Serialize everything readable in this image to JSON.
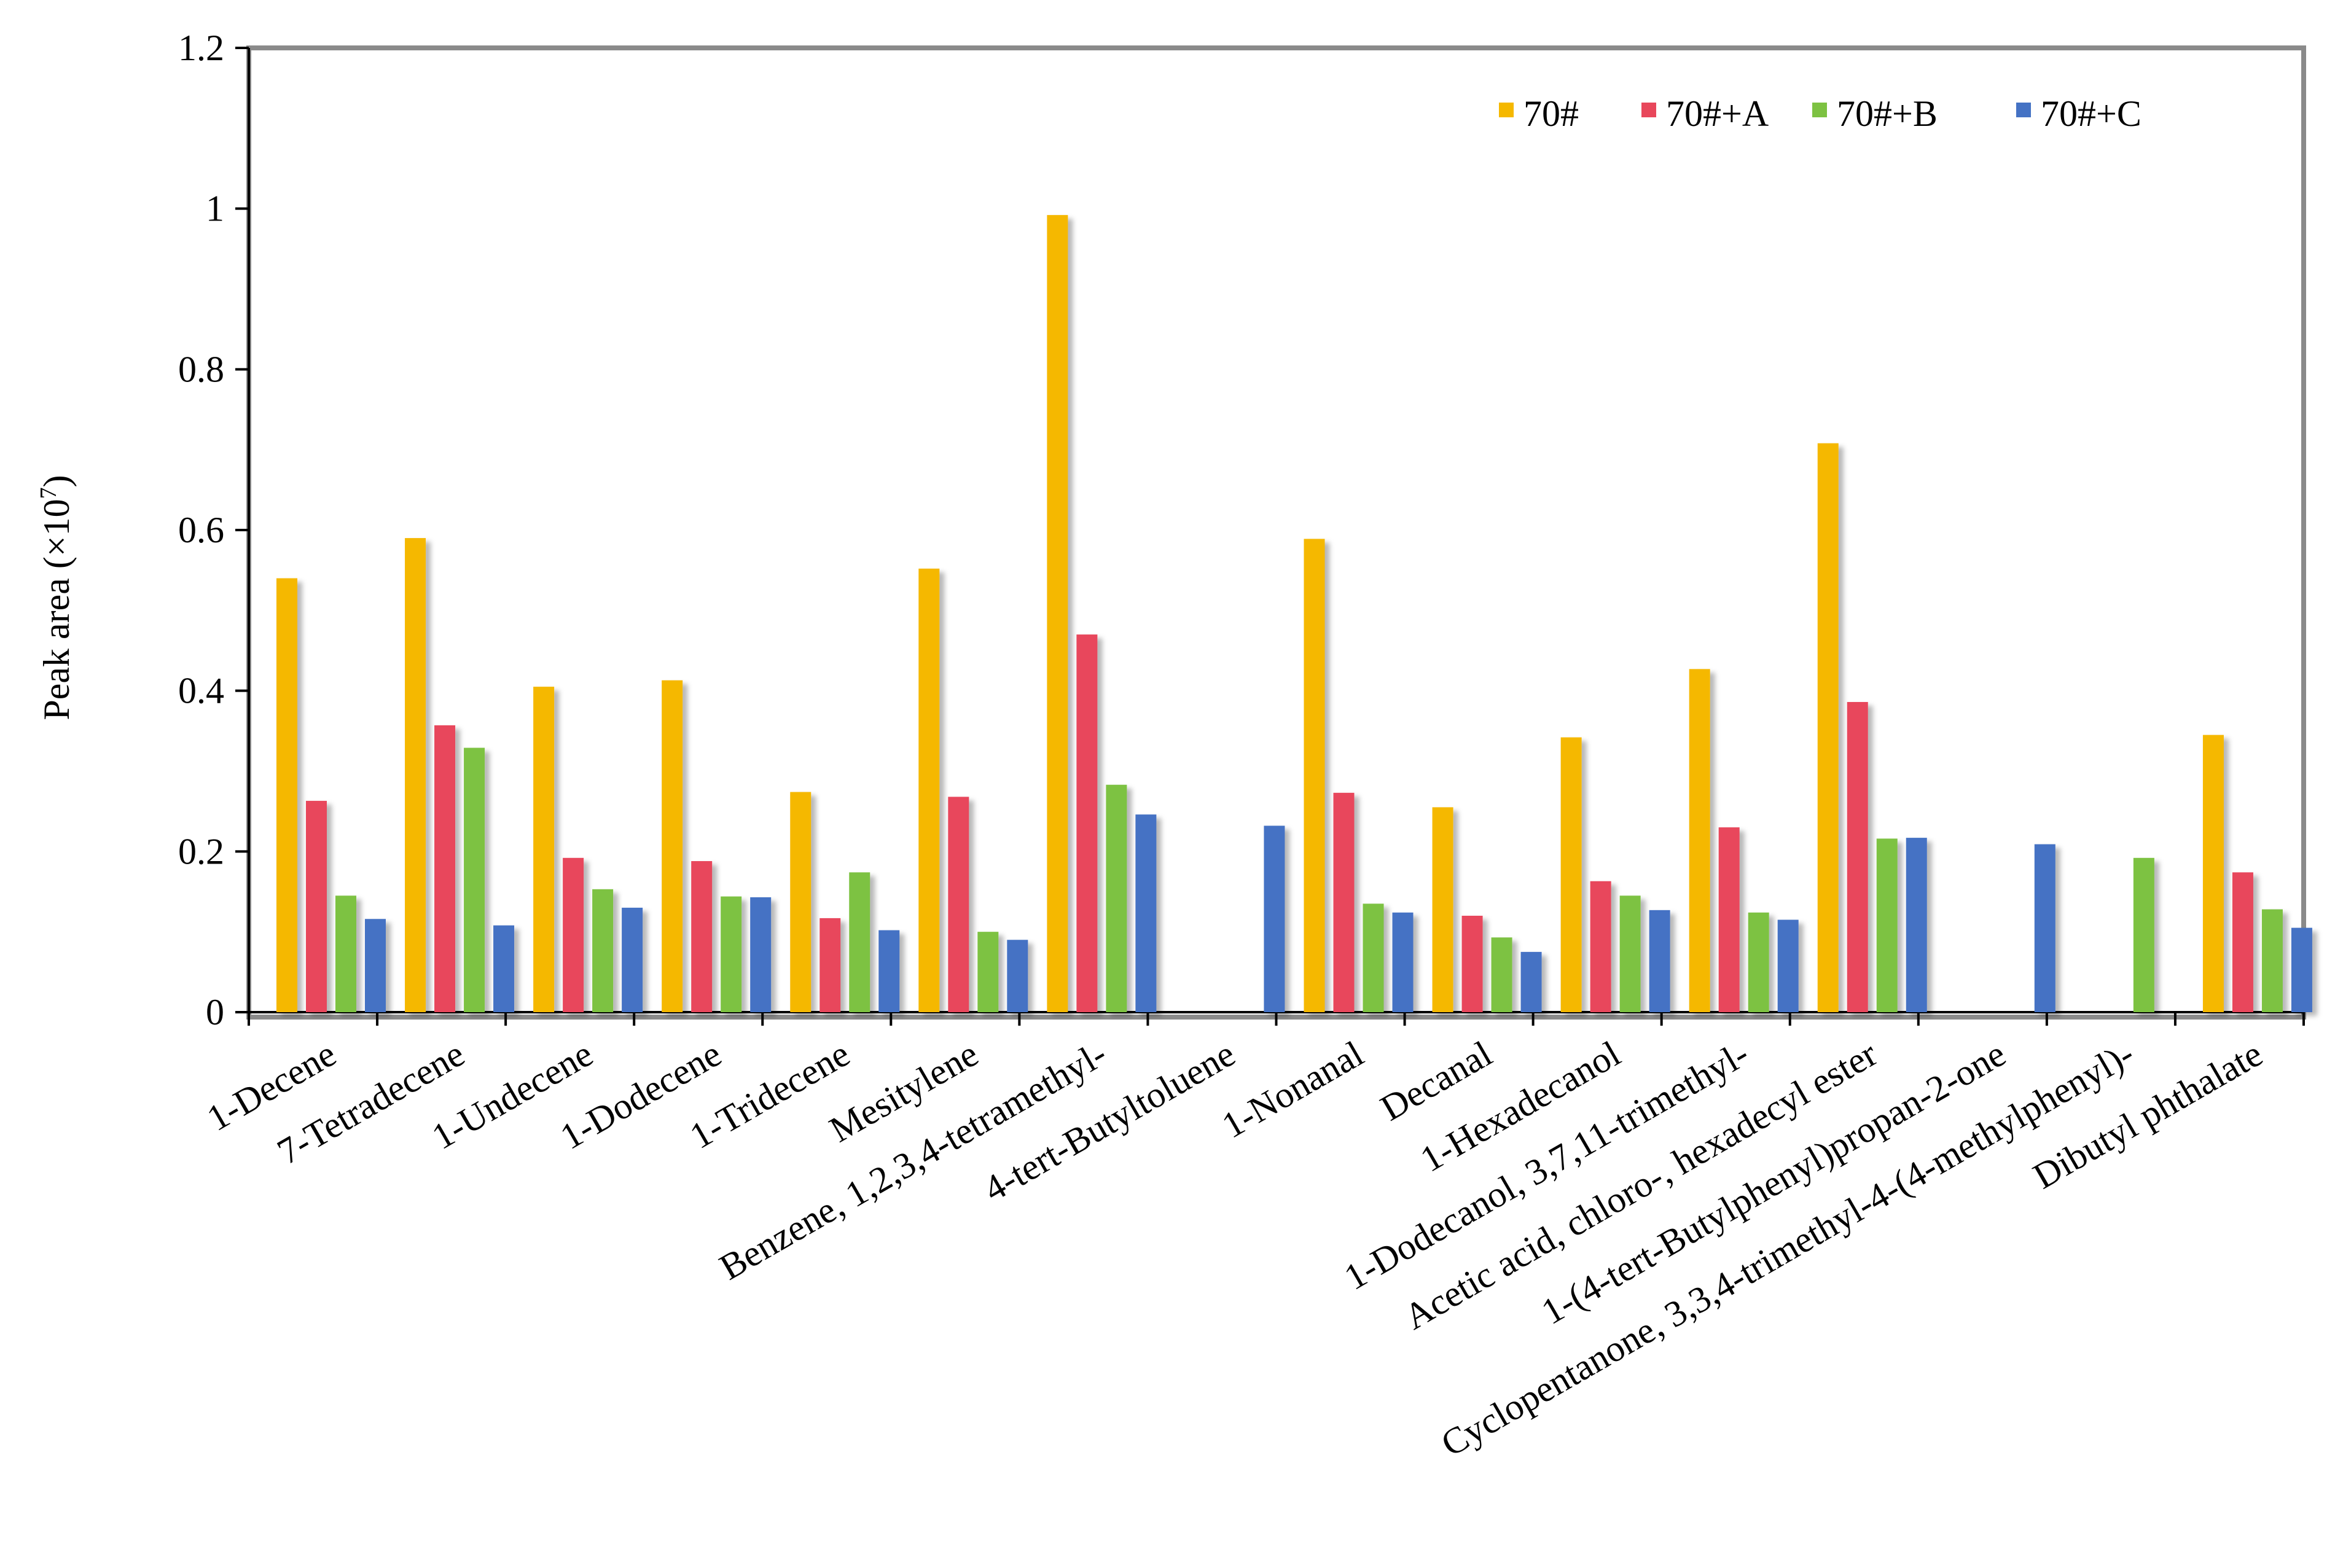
{
  "chart_data": {
    "type": "bar",
    "title": "",
    "xlabel": "",
    "ylabel": "Peak area (×10",
    "ylabel_superscript": "7",
    "ylabel_suffix": ")",
    "ylim": [
      0,
      1.2
    ],
    "yticks": [
      0,
      0.2,
      0.4,
      0.6,
      0.8,
      1,
      1.2
    ],
    "ytick_labels": [
      "0",
      "0.2",
      "0.4",
      "0.6",
      "0.8",
      "1",
      "1.2"
    ],
    "legend_position": "top-right",
    "categories": [
      "1-Decene",
      "7-Tetradecene",
      "1-Undecene",
      "1-Dodecene",
      "1-Tridecene",
      "Mesitylene",
      "Benzene, 1,2,3,4-tetramethyl-",
      "4-tert-Butyltoluene",
      "1-Nonanal",
      "Decanal",
      "1-Hexadecanol",
      "1-Dodecanol, 3,7,11-trimethyl-",
      "Acetic acid, chloro-, hexadecyl ester",
      "1-(4-tert-Butylphenyl)propan-2-one",
      "Cyclopentanone, 3,3,4-trimethyl-4-(4-methylphenyl)-",
      "Dibutyl phthalate"
    ],
    "series": [
      {
        "name": "70#",
        "color": "#F5B800",
        "values": [
          0.54,
          0.59,
          0.405,
          0.413,
          0.274,
          0.552,
          0.992,
          0,
          0.589,
          0.255,
          0.342,
          0.427,
          0.708,
          0,
          0,
          0.345
        ]
      },
      {
        "name": "70#+A",
        "color": "#E8475B",
        "values": [
          0.263,
          0.357,
          0.192,
          0.188,
          0.117,
          0.268,
          0.47,
          0,
          0.273,
          0.12,
          0.163,
          0.23,
          0.386,
          0,
          0,
          0.174
        ]
      },
      {
        "name": "70#+B",
        "color": "#7DC242",
        "values": [
          0.145,
          0.329,
          0.153,
          0.144,
          0.174,
          0.1,
          0.283,
          0,
          0.135,
          0.093,
          0.145,
          0.124,
          0.216,
          0,
          0.192,
          0.128
        ]
      },
      {
        "name": "70#+C",
        "color": "#4472C4",
        "values": [
          0.116,
          0.108,
          0.13,
          0.143,
          0.102,
          0.09,
          0.246,
          0.232,
          0.124,
          0.075,
          0.127,
          0.115,
          0.217,
          0.209,
          0,
          0.105
        ]
      }
    ]
  }
}
